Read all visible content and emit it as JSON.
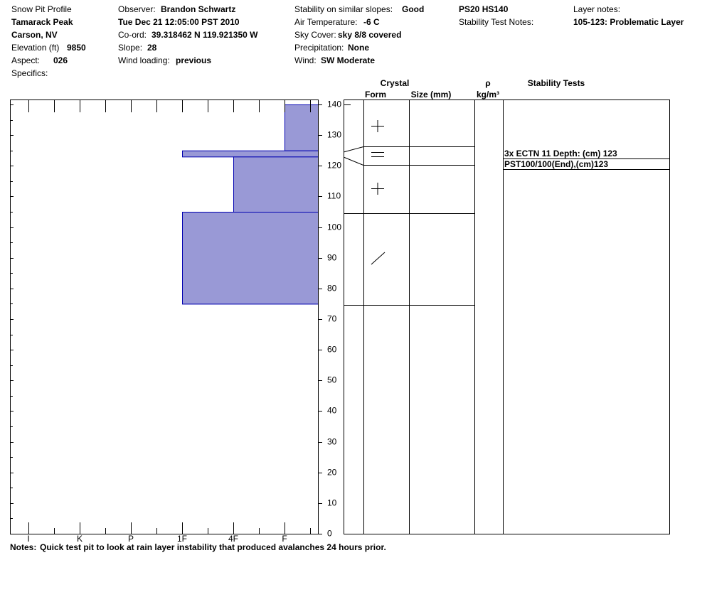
{
  "header": {
    "title": "Snow Pit Profile",
    "location": "Tamarack Peak",
    "region": "Carson, NV",
    "elevation": {
      "label": "Elevation (ft)",
      "value": "9850"
    },
    "aspect": {
      "label": "Aspect:",
      "value": "026"
    },
    "specifics": {
      "label": "Specifics:"
    },
    "observer": {
      "label": "Observer:",
      "value": "Brandon Schwartz"
    },
    "date": "Tue Dec 21 12:05:00 PST 2010",
    "coord": {
      "label": "Co-ord:",
      "value": "39.318462 N 119.921350 W"
    },
    "slope": {
      "label": "Slope:",
      "value": "28"
    },
    "wind_loading": {
      "label": "Wind loading:",
      "value": "previous"
    },
    "stability": {
      "label": "Stability on similar slopes:",
      "value": "Good"
    },
    "air_temp": {
      "label": "Air Temperature:",
      "value": "-6 C"
    },
    "sky": {
      "label": "Sky Cover:",
      "value": "sky 8/8 covered"
    },
    "precip": {
      "label": "Precipitation:",
      "value": "None"
    },
    "wind": {
      "label": "Wind:",
      "value": "SW Moderate"
    },
    "ps": "PS20 HS140",
    "stability_notes": {
      "label": "Stability Test Notes:"
    },
    "layer_notes": {
      "label": "Layer notes:",
      "value": "105-123: Problematic Layer"
    }
  },
  "table": {
    "crystal": "Crystal",
    "form": "Form",
    "size": "Size (mm)",
    "rho": "ρ",
    "rho_unit": "kg/m³",
    "tests": "Stability Tests",
    "test_rows": [
      "3x ECTN 11   Depth: (cm) 123",
      "PST100/100(End),(cm)123"
    ]
  },
  "notes": {
    "label": "Notes:",
    "text": "Quick test pit to look at rain layer instability that produced avalanches 24 hours prior."
  },
  "chart_data": {
    "type": "snow-profile",
    "color": "#9999d6",
    "ylim": [
      0,
      140
    ],
    "yticks": [
      0,
      10,
      20,
      30,
      40,
      50,
      60,
      70,
      80,
      90,
      100,
      110,
      120,
      130,
      140
    ],
    "hardness": [
      "I",
      "K",
      "P",
      "1F",
      "4F",
      "F"
    ],
    "layers": [
      {
        "top": 140,
        "bottom": 125,
        "hardness": "F"
      },
      {
        "top": 125,
        "bottom": 123,
        "hardness": "1F"
      },
      {
        "top": 123,
        "bottom": 105,
        "hardness": "4F"
      },
      {
        "top": 105,
        "bottom": 75,
        "hardness": "1F"
      }
    ]
  }
}
